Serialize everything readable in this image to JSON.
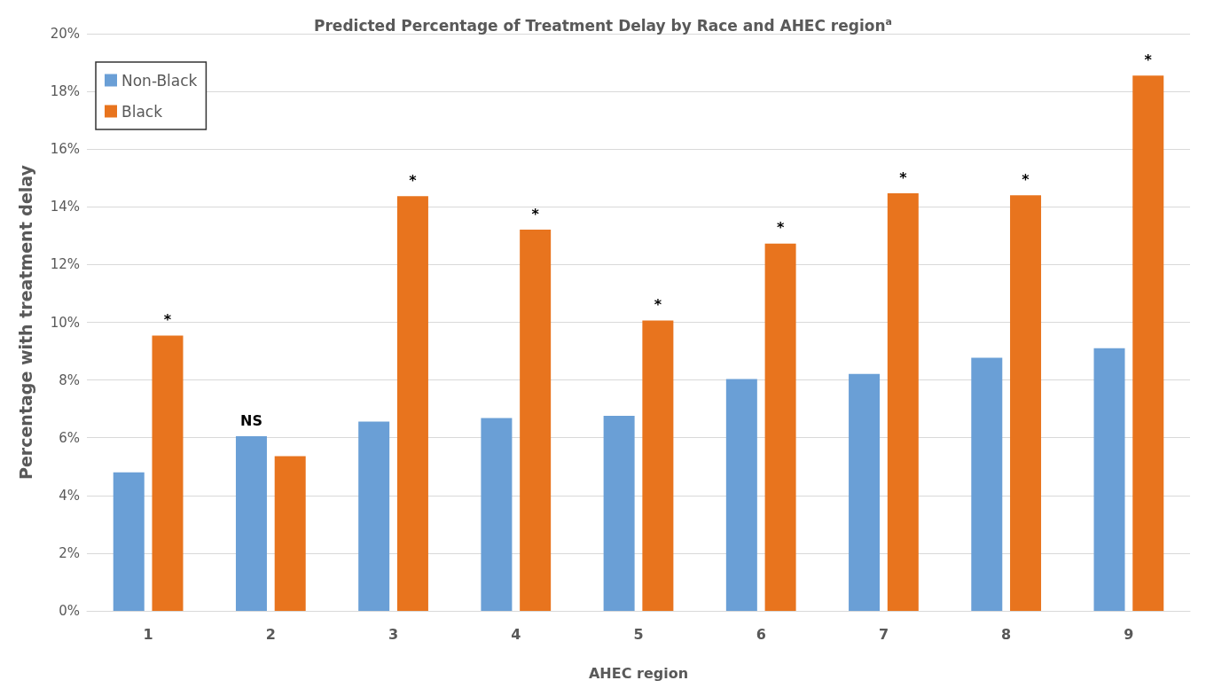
{
  "chart_data": {
    "type": "bar",
    "title": "Predicted Percentage of Treatment Delay by Race and AHEC region$^{a}$",
    "xlabel": "AHEC region",
    "ylabel": "Percentage with treatment delay",
    "categories": [
      "1",
      "2",
      "3",
      "4",
      "5",
      "6",
      "7",
      "8",
      "9"
    ],
    "series": [
      {
        "name": "Non-Black",
        "color": "#6a9fd6",
        "values": [
          4.8,
          6.05,
          6.56,
          6.68,
          6.76,
          8.03,
          8.21,
          8.77,
          9.1
        ]
      },
      {
        "name": "Black",
        "color": "#e8741e",
        "values": [
          9.54,
          5.36,
          14.37,
          13.21,
          10.06,
          12.73,
          14.47,
          14.4,
          18.55
        ]
      }
    ],
    "ylim": [
      0,
      20
    ],
    "yticks": [
      {
        "value": 0,
        "label": "0%"
      },
      {
        "value": 2,
        "label": "2%"
      },
      {
        "value": 4,
        "label": "4%"
      },
      {
        "value": 6,
        "label": "6%"
      },
      {
        "value": 8,
        "label": "8%"
      },
      {
        "value": 10,
        "label": "10%"
      },
      {
        "value": 12,
        "label": "12%"
      },
      {
        "value": 14,
        "label": "14%"
      },
      {
        "value": 16,
        "label": "16%"
      },
      {
        "value": 18,
        "label": "18%"
      },
      {
        "value": 20,
        "label": "20%"
      }
    ],
    "annotations": [
      {
        "text": "*",
        "x": "1",
        "y": 9.54
      },
      {
        "text": "NS",
        "x": "2",
        "y": 6.05
      },
      {
        "text": "*",
        "x": "3",
        "y": 14.37
      },
      {
        "text": "*",
        "x": "4",
        "y": 13.21
      },
      {
        "text": "*",
        "x": "5",
        "y": 10.06
      },
      {
        "text": "*",
        "x": "6",
        "y": 12.73
      },
      {
        "text": "*",
        "x": "7",
        "y": 14.47
      },
      {
        "text": "*",
        "x": "8",
        "y": 14.4
      },
      {
        "text": "*",
        "x": "9",
        "y": 18.55
      }
    ],
    "grid": "y",
    "legend": "top left"
  }
}
